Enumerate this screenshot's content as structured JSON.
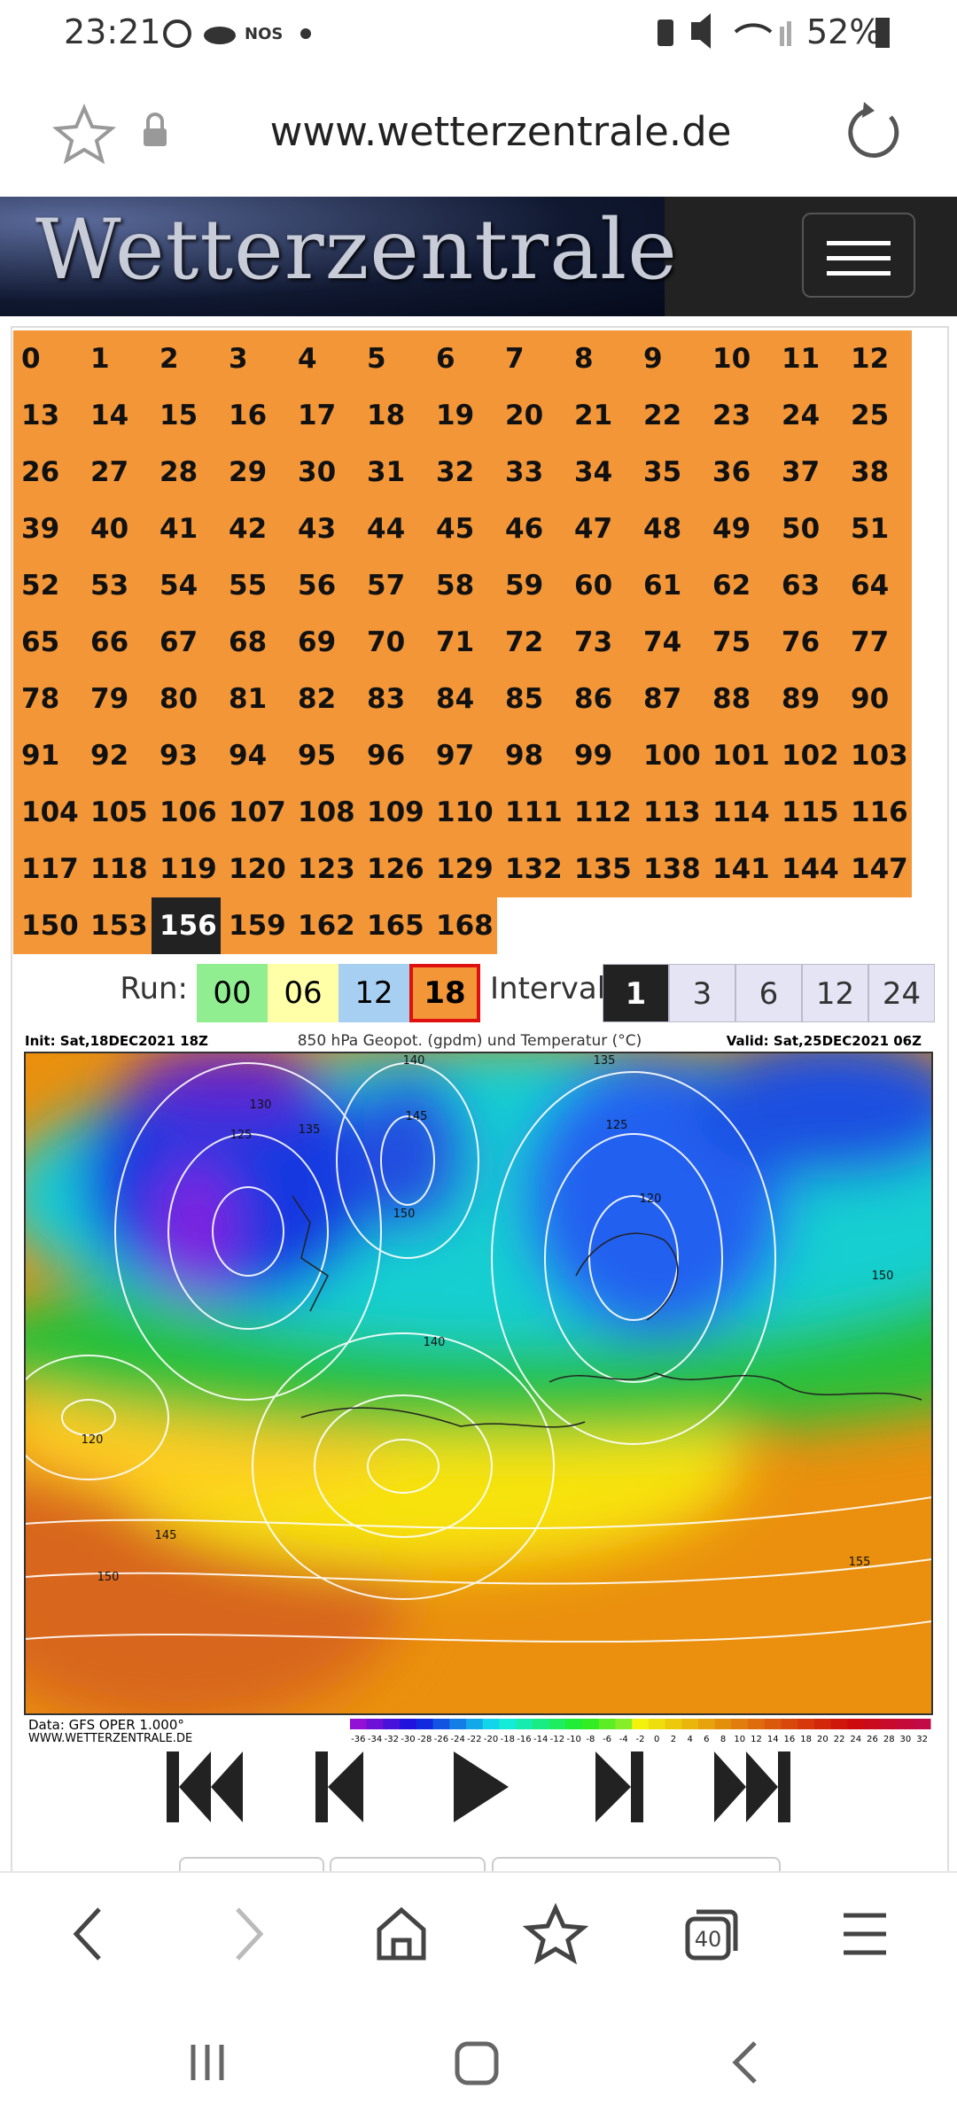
{
  "status_bar": {
    "time": "23:21",
    "carrier": "NOS",
    "battery": "52%"
  },
  "browser": {
    "url": "www.wetterzentrale.de"
  },
  "header": {
    "logo": "Wetterzentrale"
  },
  "hours": {
    "items": [
      0,
      1,
      2,
      3,
      4,
      5,
      6,
      7,
      8,
      9,
      10,
      11,
      12,
      13,
      14,
      15,
      16,
      17,
      18,
      19,
      20,
      21,
      22,
      23,
      24,
      25,
      26,
      27,
      28,
      29,
      30,
      31,
      32,
      33,
      34,
      35,
      36,
      37,
      38,
      39,
      40,
      41,
      42,
      43,
      44,
      45,
      46,
      47,
      48,
      49,
      50,
      51,
      52,
      53,
      54,
      55,
      56,
      57,
      58,
      59,
      60,
      61,
      62,
      63,
      64,
      65,
      66,
      67,
      68,
      69,
      70,
      71,
      72,
      73,
      74,
      75,
      76,
      77,
      78,
      79,
      80,
      81,
      82,
      83,
      84,
      85,
      86,
      87,
      88,
      89,
      90,
      91,
      92,
      93,
      94,
      95,
      96,
      97,
      98,
      99,
      100,
      101,
      102,
      103,
      104,
      105,
      106,
      107,
      108,
      109,
      110,
      111,
      112,
      113,
      114,
      115,
      116,
      117,
      118,
      119,
      120,
      123,
      126,
      129,
      132,
      135,
      138,
      141,
      144,
      147,
      150,
      153,
      156,
      159,
      162,
      165,
      168
    ],
    "selected": 156
  },
  "run": {
    "label": "Run:",
    "options": [
      {
        "label": "00",
        "selected": false
      },
      {
        "label": "06",
        "selected": false
      },
      {
        "label": "12",
        "selected": false
      },
      {
        "label": "18",
        "selected": true
      }
    ]
  },
  "interval": {
    "label": "Interval",
    "options": [
      {
        "label": "1",
        "selected": true
      },
      {
        "label": "3",
        "selected": false
      },
      {
        "label": "6",
        "selected": false
      },
      {
        "label": "12",
        "selected": false
      },
      {
        "label": "24",
        "selected": false
      }
    ]
  },
  "map": {
    "init": "Init: Sat,18DEC2021 18Z",
    "title": "850 hPa Geopot. (gpdm) und Temperatur (°C)",
    "valid": "Valid: Sat,25DEC2021 06Z",
    "contour_labels": [
      "130",
      "125",
      "135",
      "140",
      "145",
      "150",
      "135",
      "125",
      "120",
      "150",
      "120",
      "140",
      "145",
      "150",
      "155"
    ],
    "data_source": "Data: GFS OPER 1.000°",
    "site": "WWW.WETTERZENTRALE.DE",
    "colorbar": [
      -36,
      -34,
      -32,
      -30,
      -28,
      -26,
      -24,
      -22,
      -20,
      -18,
      -16,
      -14,
      -12,
      -10,
      -8,
      -6,
      -4,
      -2,
      0,
      2,
      4,
      6,
      8,
      10,
      12,
      14,
      16,
      18,
      20,
      22,
      24,
      26,
      28,
      30,
      32
    ]
  },
  "toolbar": {
    "tabs": "40"
  }
}
